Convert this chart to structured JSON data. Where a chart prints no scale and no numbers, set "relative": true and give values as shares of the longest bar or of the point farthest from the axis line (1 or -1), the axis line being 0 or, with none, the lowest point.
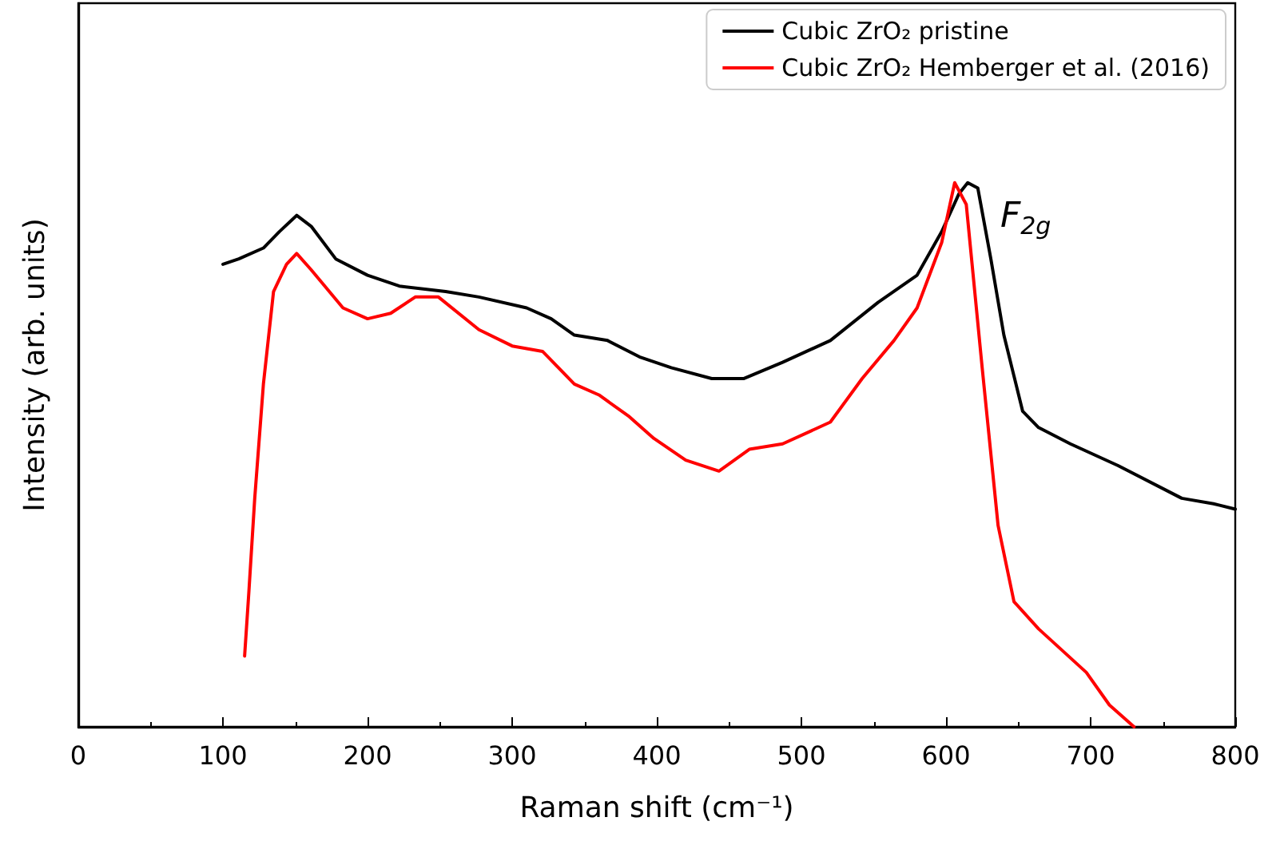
{
  "chart_data": {
    "type": "line",
    "relative": true,
    "xlabel": "Raman shift (cm⁻¹)",
    "ylabel": "Intensity (arb. units)",
    "xlim": [
      0,
      800
    ],
    "xticks": [
      0,
      100,
      200,
      300,
      400,
      500,
      600,
      700,
      800
    ],
    "tick_labels": "x",
    "legend": "top right",
    "grid": false,
    "marker": "none",
    "line_style": "solid",
    "annotations": [
      "F$_{2g}$"
    ],
    "series": [
      {
        "name": "Cubic ZrO₂ pristine",
        "color": "#000000",
        "x": [
          100,
          111,
          128,
          139,
          151,
          161,
          178,
          200,
          222,
          254,
          277,
          310,
          327,
          343,
          366,
          388,
          410,
          438,
          460,
          487,
          520,
          553,
          580,
          597,
          609,
          615,
          622,
          631,
          640,
          653,
          664,
          686,
          719,
          763,
          785,
          800
        ],
        "values": [
          0.85,
          0.86,
          0.88,
          0.91,
          0.94,
          0.92,
          0.86,
          0.83,
          0.81,
          0.8,
          0.79,
          0.77,
          0.75,
          0.72,
          0.71,
          0.68,
          0.66,
          0.64,
          0.64,
          0.67,
          0.71,
          0.78,
          0.83,
          0.91,
          0.98,
          1.0,
          0.99,
          0.86,
          0.72,
          0.58,
          0.55,
          0.52,
          0.48,
          0.42,
          0.41,
          0.4
        ]
      },
      {
        "name": "Cubic ZrO₂ Hemberger et al. (2016)",
        "color": "#ff0000",
        "x": [
          115,
          118,
          122,
          128,
          135,
          144,
          151,
          161,
          183,
          200,
          216,
          233,
          249,
          277,
          300,
          321,
          343,
          360,
          381,
          398,
          420,
          443,
          464,
          487,
          520,
          542,
          564,
          580,
          597,
          606,
          614,
          625,
          636,
          647,
          664,
          697,
          713,
          730
        ],
        "values": [
          0.13,
          0.25,
          0.42,
          0.63,
          0.8,
          0.85,
          0.87,
          0.84,
          0.77,
          0.75,
          0.76,
          0.79,
          0.79,
          0.73,
          0.7,
          0.69,
          0.63,
          0.61,
          0.57,
          0.53,
          0.49,
          0.47,
          0.51,
          0.52,
          0.56,
          0.64,
          0.71,
          0.77,
          0.89,
          1.0,
          0.96,
          0.66,
          0.37,
          0.23,
          0.18,
          0.1,
          0.04,
          0.0
        ]
      }
    ]
  }
}
